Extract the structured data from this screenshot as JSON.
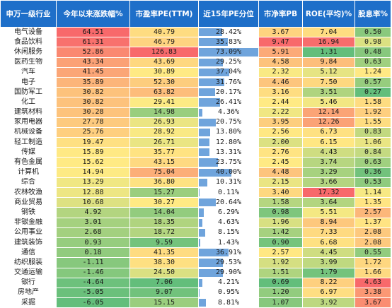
{
  "headers": [
    "申万一级行业",
    "今年以来涨跌幅%",
    "市盈率PE(TTM)",
    "近15年PE分位",
    "市净率PB",
    "ROE(平均)%",
    "股息率%"
  ],
  "colors": {
    "header_bg": "#1e6fc9",
    "high_red": "#f8696b",
    "mid_yellow": "#ffeb84",
    "low_green": "#63be7b",
    "bar_blue": "#6fa4dc"
  },
  "rows": [
    {
      "name": "电气设备",
      "ytd": "64.51",
      "pe": "40.79",
      "pct": "28.42%",
      "pb": "3.67",
      "roe": "7.04",
      "div": "0.50"
    },
    {
      "name": "食品饮料",
      "ytd": "61.31",
      "pe": "46.79",
      "pct": "35.83%",
      "pb": "9.47",
      "roe": "16.94",
      "div": "0.98"
    },
    {
      "name": "休闲服务",
      "ytd": "52.86",
      "pe": "126.83",
      "pct": "73.09%",
      "pb": "5.91",
      "roe": "1.31",
      "div": "0.48"
    },
    {
      "name": "医药生物",
      "ytd": "43.34",
      "pe": "43.69",
      "pct": "29.25%",
      "pb": "4.58",
      "roe": "9.84",
      "div": "0.63"
    },
    {
      "name": "汽车",
      "ytd": "41.45",
      "pe": "30.89",
      "pct": "37.04%",
      "pb": "2.32",
      "roe": "5.12",
      "div": "1.24"
    },
    {
      "name": "电子",
      "ytd": "35.89",
      "pe": "52.30",
      "pct": "31.76%",
      "pb": "4.46",
      "roe": "7.50",
      "div": "0.57"
    },
    {
      "name": "国防军工",
      "ytd": "30.82",
      "pe": "63.82",
      "pct": "20.17%",
      "pb": "3.16",
      "roe": "3.51",
      "div": "0.27"
    },
    {
      "name": "化工",
      "ytd": "30.82",
      "pe": "29.41",
      "pct": "26.41%",
      "pb": "2.44",
      "roe": "5.46",
      "div": "1.58"
    },
    {
      "name": "建筑材料",
      "ytd": "30.28",
      "pe": "14.98",
      "pct": "4.36%",
      "pb": "2.22",
      "roe": "12.14",
      "div": "1.92"
    },
    {
      "name": "家用电器",
      "ytd": "27.78",
      "pe": "26.93",
      "pct": "20.75%",
      "pb": "3.95",
      "roe": "12.26",
      "div": "1.55"
    },
    {
      "name": "机械设备",
      "ytd": "25.76",
      "pe": "28.92",
      "pct": "13.80%",
      "pb": "2.56",
      "roe": "6.73",
      "div": "0.83"
    },
    {
      "name": "轻工制造",
      "ytd": "19.47",
      "pe": "26.71",
      "pct": "12.80%",
      "pb": "2.00",
      "roe": "6.15",
      "div": "1.06"
    },
    {
      "name": "传媒",
      "ytd": "15.89",
      "pe": "35.77",
      "pct": "13.31%",
      "pb": "2.76",
      "roe": "4.43",
      "div": "0.84"
    },
    {
      "name": "有色金属",
      "ytd": "15.62",
      "pe": "43.15",
      "pct": "23.75%",
      "pb": "2.45",
      "roe": "3.74",
      "div": "0.63"
    },
    {
      "name": "计算机",
      "ytd": "14.94",
      "pe": "75.04",
      "pct": "40.00%",
      "pb": "4.48",
      "roe": "3.29",
      "div": "0.36"
    },
    {
      "name": "综合",
      "ytd": "13.29",
      "pe": "36.80",
      "pct": "10.31%",
      "pb": "2.15",
      "roe": "3.66",
      "div": "0.53"
    },
    {
      "name": "农林牧渔",
      "ytd": "12.88",
      "pe": "15.27",
      "pct": "0.11%",
      "pb": "3.40",
      "roe": "17.32",
      "div": "1.14"
    },
    {
      "name": "商业贸易",
      "ytd": "10.68",
      "pe": "30.27",
      "pct": "20.64%",
      "pb": "1.58",
      "roe": "3.64",
      "div": "1.35"
    },
    {
      "name": "钢铁",
      "ytd": "4.92",
      "pe": "14.04",
      "pct": "6.29%",
      "pb": "0.98",
      "roe": "5.51",
      "div": "2.57"
    },
    {
      "name": "非银金融",
      "ytd": "3.01",
      "pe": "18.35",
      "pct": "4.63%",
      "pb": "1.96",
      "roe": "8.94",
      "div": "1.37"
    },
    {
      "name": "公用事业",
      "ytd": "2.68",
      "pe": "18.72",
      "pct": "8.15%",
      "pb": "1.42",
      "roe": "7.33",
      "div": "2.08"
    },
    {
      "name": "建筑装饰",
      "ytd": "0.93",
      "pe": "9.59",
      "pct": "1.43%",
      "pb": "0.90",
      "roe": "6.68",
      "div": "2.08"
    },
    {
      "name": "通信",
      "ytd": "0.18",
      "pe": "41.35",
      "pct": "36.91%",
      "pb": "2.57",
      "roe": "4.45",
      "div": "0.55"
    },
    {
      "name": "纺织服装",
      "ytd": "-1.11",
      "pe": "38.30",
      "pct": "29.53%",
      "pb": "1.92",
      "roe": "3.99",
      "div": "1.72"
    },
    {
      "name": "交通运输",
      "ytd": "-1.46",
      "pe": "24.50",
      "pct": "29.90%",
      "pb": "1.51",
      "roe": "1.79",
      "div": "1.66"
    },
    {
      "name": "银行",
      "ytd": "-4.64",
      "pe": "7.06",
      "pct": "4.21%",
      "pb": "0.69",
      "roe": "8.22",
      "div": "4.63"
    },
    {
      "name": "房地产",
      "ytd": "-5.05",
      "pe": "9.07",
      "pct": "0.95%",
      "pb": "1.20",
      "roe": "6.97",
      "div": "3.38"
    },
    {
      "name": "采掘",
      "ytd": "-6.05",
      "pe": "15.15",
      "pct": "8.81%",
      "pb": "1.07",
      "roe": "3.92",
      "div": "3.67"
    }
  ]
}
